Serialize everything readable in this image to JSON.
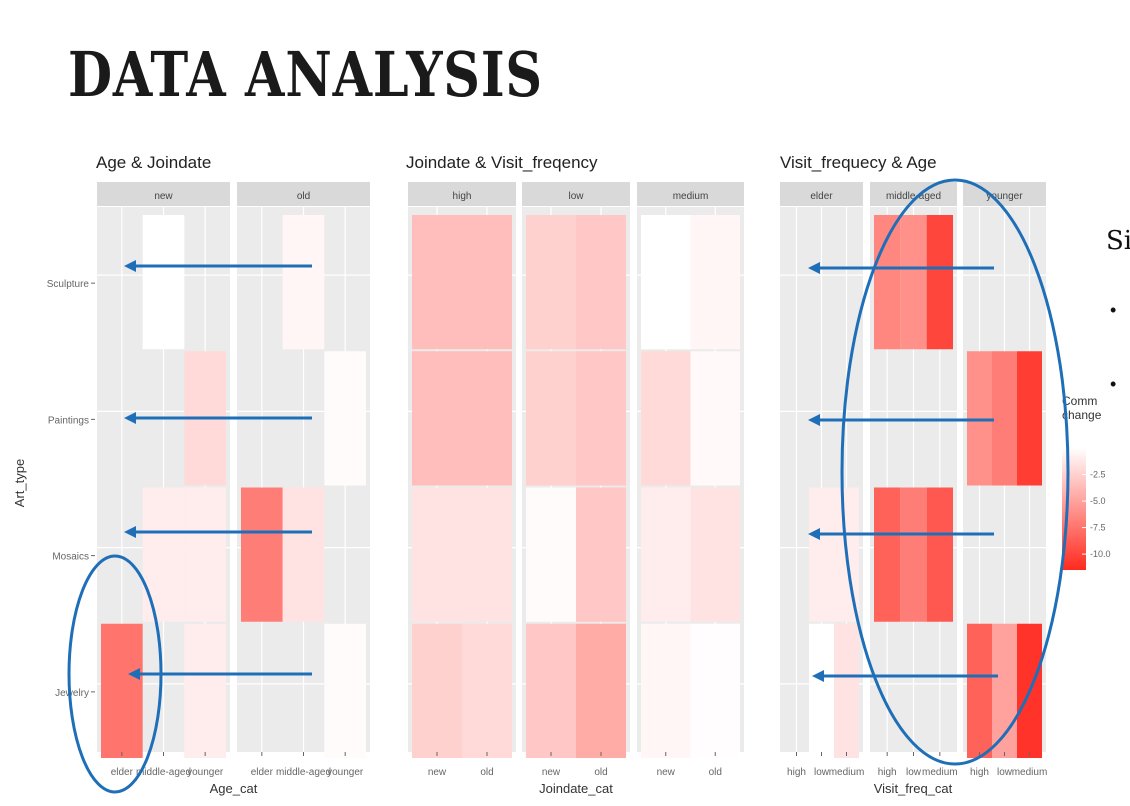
{
  "slide": {
    "title": "DATA ANALYSIS",
    "cutoff_text": "Si",
    "bullets": [
      "•",
      "•"
    ]
  },
  "colors": {
    "tile_low": "#ffffff",
    "tile_high": "#ff2a1f",
    "panel_bg": "#ebebeb",
    "strip_bg": "#d9d9d9",
    "arrow": "#1f6fb8",
    "ellipse": "#1f6fb8"
  },
  "legend": {
    "title_lines": [
      "Comm",
      "change"
    ],
    "ticks": [
      "-2.5",
      "-5.0",
      "-7.5",
      "-10.0"
    ],
    "tick_values": [
      -2.5,
      -5.0,
      -7.5,
      -10.0
    ],
    "range": [
      -11.5,
      0
    ]
  },
  "chart_data": [
    {
      "type": "heatmap",
      "title": "Age & Joindate",
      "xlabel": "Age_cat",
      "ylabel": "Art_type",
      "y_categories": [
        "Sculpture",
        "Paintings",
        "Mosaics",
        "Jewelry"
      ],
      "facets": [
        {
          "name": "new",
          "x_categories": [
            "elder",
            "middle-aged",
            "younger"
          ],
          "values": [
            [
              null,
              0,
              null
            ],
            [
              null,
              null,
              -2
            ],
            [
              null,
              -1,
              -1
            ],
            [
              -7.5,
              null,
              -1
            ]
          ]
        },
        {
          "name": "old",
          "x_categories": [
            "elder",
            "middle-aged",
            "younger"
          ],
          "values": [
            [
              null,
              -0.5,
              null
            ],
            [
              null,
              null,
              -0.2
            ],
            [
              -7,
              -1.5,
              null
            ],
            [
              null,
              null,
              -0.2
            ]
          ]
        }
      ]
    },
    {
      "type": "heatmap",
      "title": "Joindate & Visit_freqency",
      "xlabel": "Joindate_cat",
      "y_categories": [
        "Sculpture",
        "Paintings",
        "Mosaics",
        "Jewelry"
      ],
      "facets": [
        {
          "name": "high",
          "x_categories": [
            "new",
            "old"
          ],
          "values": [
            [
              -3.5,
              -3.5
            ],
            [
              -3.5,
              -3.5
            ],
            [
              -1.5,
              -1.5
            ],
            [
              -2.5,
              -2
            ]
          ]
        },
        {
          "name": "low",
          "x_categories": [
            "new",
            "old"
          ],
          "values": [
            [
              -2.5,
              -3
            ],
            [
              -2.5,
              -3
            ],
            [
              -0.2,
              -3
            ],
            [
              -3,
              -4.5
            ]
          ]
        },
        {
          "name": "medium",
          "x_categories": [
            "new",
            "old"
          ],
          "values": [
            [
              0,
              -0.5
            ],
            [
              -2,
              -0.3
            ],
            [
              -1,
              -1.5
            ],
            [
              -0.5,
              -0.1
            ]
          ]
        }
      ]
    },
    {
      "type": "heatmap",
      "title": "Visit_frequecy & Age",
      "xlabel": "Visit_freq_cat",
      "y_categories": [
        "Sculpture",
        "Paintings",
        "Mosaics",
        "Jewelry"
      ],
      "facets": [
        {
          "name": "elder",
          "x_categories": [
            "high",
            "low",
            "medium"
          ],
          "values": [
            [
              null,
              null,
              null
            ],
            [
              null,
              null,
              null
            ],
            [
              null,
              -1,
              -1
            ],
            [
              null,
              0,
              -1.5
            ]
          ]
        },
        {
          "name": "middle-aged",
          "x_categories": [
            "high",
            "low",
            "medium"
          ],
          "values": [
            [
              -6.5,
              -6,
              -10
            ],
            [
              null,
              null,
              null
            ],
            [
              -8.5,
              -7,
              -9
            ],
            [
              null,
              null,
              null
            ]
          ]
        },
        {
          "name": "younger",
          "x_categories": [
            "high",
            "low",
            "medium"
          ],
          "values": [
            [
              null,
              null,
              null
            ],
            [
              -6,
              -7,
              -10.5
            ],
            [
              null,
              null,
              null
            ],
            [
              -8.5,
              -5,
              -11
            ]
          ]
        }
      ]
    }
  ]
}
